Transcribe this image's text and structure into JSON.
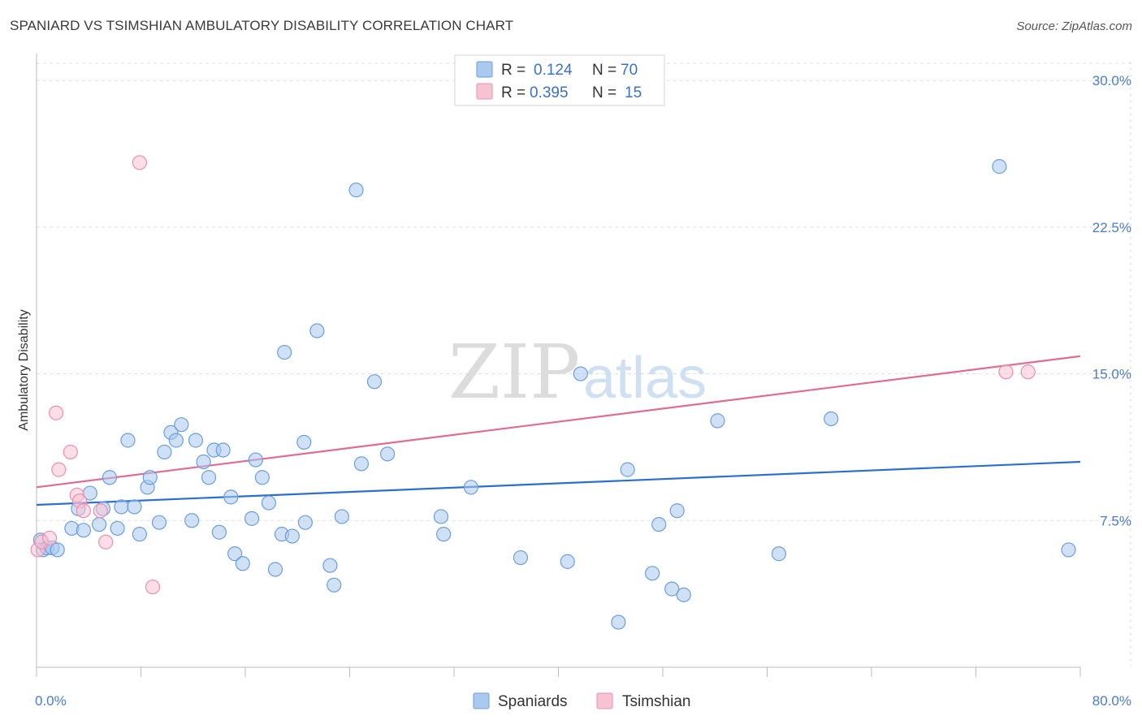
{
  "title": "SPANIARD VS TSIMSHIAN AMBULATORY DISABILITY CORRELATION CHART",
  "source": "Source: ZipAtlas.com",
  "watermark": {
    "zip": "ZIP",
    "atlas": "atlas"
  },
  "legend": {
    "r_label": "R =",
    "n_label": "N =",
    "rows": [
      {
        "r": "0.124",
        "n": "70",
        "color": "#7aaee8"
      },
      {
        "r": "0.395",
        "n": "15",
        "color": "#f19cb8"
      }
    ]
  },
  "bottom_legend": [
    {
      "label": "Spaniards",
      "color": "#7aaee8"
    },
    {
      "label": "Tsimshian",
      "color": "#f19cb8"
    }
  ],
  "colors": {
    "spaniards_fill": "#a9c9ef",
    "spaniards_stroke": "#6a9fdc",
    "spaniards_line": "#2a6fcf",
    "tsimshian_fill": "#f7c3d3",
    "tsimshian_stroke": "#ec8fad",
    "tsimshian_line": "#e06b95",
    "tick_text": "#4a7cc8",
    "grid": "#dddddd"
  },
  "chart_data": {
    "type": "scatter",
    "title": "SPANIARD VS TSIMSHIAN AMBULATORY DISABILITY CORRELATION CHART",
    "xlabel": "",
    "ylabel": "Ambulatory Disability",
    "xlim": [
      0,
      80
    ],
    "ylim": [
      0,
      31
    ],
    "x_ticks": [
      "0.0%",
      "80.0%"
    ],
    "y_ticks": [
      {
        "value": 7.5,
        "label": "7.5%"
      },
      {
        "value": 15.0,
        "label": "15.0%"
      },
      {
        "value": 22.5,
        "label": "22.5%"
      },
      {
        "value": 30.0,
        "label": "30.0%"
      }
    ],
    "grid": true,
    "legend_position": "top-center",
    "series": [
      {
        "name": "Spaniards",
        "r": 0.124,
        "n": 70,
        "trend": [
          [
            0,
            8.3
          ],
          [
            80,
            10.5
          ]
        ],
        "points": [
          [
            0.3,
            6.5
          ],
          [
            0.5,
            6.0
          ],
          [
            0.8,
            6.1
          ],
          [
            1.2,
            6.1
          ],
          [
            1.6,
            6.0
          ],
          [
            2.7,
            7.1
          ],
          [
            3.2,
            8.1
          ],
          [
            3.6,
            7.0
          ],
          [
            4.1,
            8.9
          ],
          [
            4.8,
            7.3
          ],
          [
            5.1,
            8.1
          ],
          [
            5.6,
            9.7
          ],
          [
            6.2,
            7.1
          ],
          [
            6.5,
            8.2
          ],
          [
            7.0,
            11.6
          ],
          [
            7.5,
            8.2
          ],
          [
            7.9,
            6.8
          ],
          [
            8.5,
            9.2
          ],
          [
            8.7,
            9.7
          ],
          [
            9.4,
            7.4
          ],
          [
            9.8,
            11.0
          ],
          [
            10.3,
            12.0
          ],
          [
            10.7,
            11.6
          ],
          [
            11.1,
            12.4
          ],
          [
            11.9,
            7.5
          ],
          [
            12.2,
            11.6
          ],
          [
            12.8,
            10.5
          ],
          [
            13.2,
            9.7
          ],
          [
            13.6,
            11.1
          ],
          [
            14.0,
            6.9
          ],
          [
            14.3,
            11.1
          ],
          [
            14.9,
            8.7
          ],
          [
            15.2,
            5.8
          ],
          [
            15.8,
            5.3
          ],
          [
            16.5,
            7.6
          ],
          [
            16.8,
            10.6
          ],
          [
            17.3,
            9.7
          ],
          [
            17.8,
            8.4
          ],
          [
            18.3,
            5.0
          ],
          [
            18.8,
            6.8
          ],
          [
            19.0,
            16.1
          ],
          [
            19.6,
            6.7
          ],
          [
            20.5,
            11.5
          ],
          [
            20.6,
            7.4
          ],
          [
            21.5,
            17.2
          ],
          [
            22.5,
            5.2
          ],
          [
            22.8,
            4.2
          ],
          [
            23.4,
            7.7
          ],
          [
            24.5,
            24.4
          ],
          [
            24.9,
            10.4
          ],
          [
            25.9,
            14.6
          ],
          [
            26.9,
            10.9
          ],
          [
            31.0,
            7.7
          ],
          [
            31.2,
            6.8
          ],
          [
            33.3,
            9.2
          ],
          [
            37.1,
            5.6
          ],
          [
            40.7,
            5.4
          ],
          [
            41.7,
            15.0
          ],
          [
            44.6,
            2.3
          ],
          [
            45.3,
            10.1
          ],
          [
            47.2,
            4.8
          ],
          [
            47.7,
            7.3
          ],
          [
            48.7,
            4.0
          ],
          [
            49.1,
            8.0
          ],
          [
            49.6,
            3.7
          ],
          [
            52.2,
            12.6
          ],
          [
            56.9,
            5.8
          ],
          [
            60.9,
            12.7
          ],
          [
            73.8,
            25.6
          ],
          [
            79.1,
            6.0
          ]
        ]
      },
      {
        "name": "Tsimshian",
        "r": 0.395,
        "n": 15,
        "trend": [
          [
            0,
            9.2
          ],
          [
            80,
            15.9
          ]
        ],
        "points": [
          [
            0.1,
            6.0
          ],
          [
            0.4,
            6.4
          ],
          [
            1.0,
            6.6
          ],
          [
            1.5,
            13.0
          ],
          [
            1.7,
            10.1
          ],
          [
            2.6,
            11.0
          ],
          [
            3.1,
            8.8
          ],
          [
            3.3,
            8.5
          ],
          [
            3.6,
            8.0
          ],
          [
            4.9,
            8.0
          ],
          [
            5.3,
            6.4
          ],
          [
            7.9,
            25.8
          ],
          [
            8.9,
            4.1
          ],
          [
            74.3,
            15.1
          ],
          [
            76.0,
            15.1
          ]
        ]
      }
    ]
  }
}
